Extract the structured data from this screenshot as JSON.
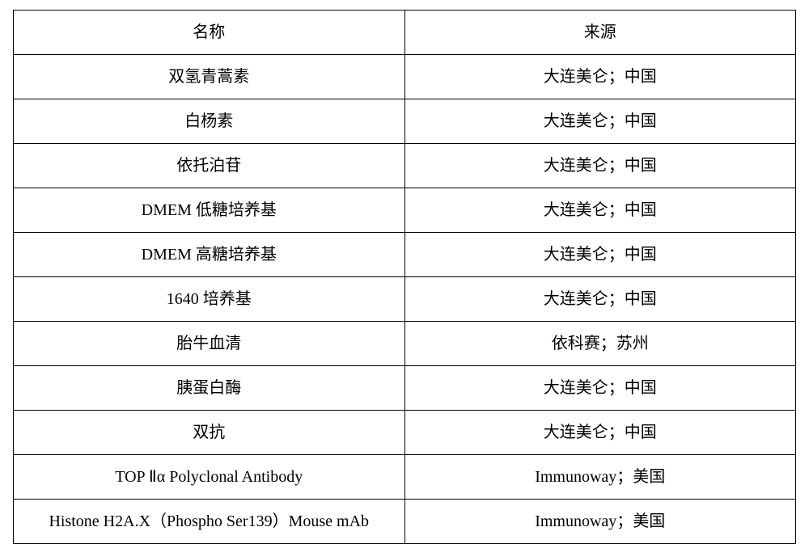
{
  "table": {
    "type": "table",
    "background_color": "#ffffff",
    "border_color": "#000000",
    "text_color": "#000000",
    "font_size": 20,
    "columns": [
      {
        "label": "名称",
        "width_pct": 50,
        "align": "center"
      },
      {
        "label": "来源",
        "width_pct": 50,
        "align": "center"
      }
    ],
    "rows": [
      {
        "name": "双氢青蒿素",
        "source": "大连美仑；中国"
      },
      {
        "name": "白杨素",
        "source": "大连美仑；中国"
      },
      {
        "name": "依托泊苷",
        "source": "大连美仑；中国"
      },
      {
        "name": "DMEM 低糖培养基",
        "source": "大连美仑；中国"
      },
      {
        "name": "DMEM 高糖培养基",
        "source": "大连美仑；中国"
      },
      {
        "name": "1640 培养基",
        "source": "大连美仑；中国"
      },
      {
        "name": "胎牛血清",
        "source": "依科赛；苏州"
      },
      {
        "name": "胰蛋白酶",
        "source": "大连美仑；中国"
      },
      {
        "name": "双抗",
        "source": "大连美仑；中国"
      },
      {
        "name": "TOP Ⅱα Polyclonal Antibody",
        "source": "Immunoway；美国"
      },
      {
        "name": "Histone H2A.X（Phospho Ser139）Mouse mAb",
        "source": "Immunoway；美国"
      }
    ]
  }
}
